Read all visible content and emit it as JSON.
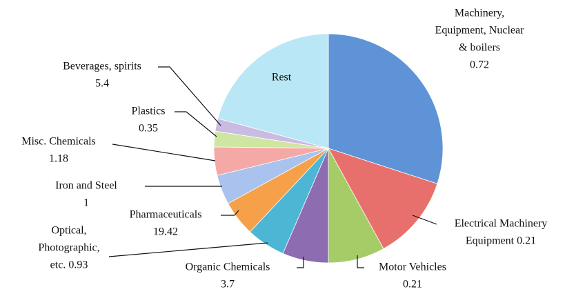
{
  "chart_data": {
    "type": "pie",
    "categories": [
      [
        "Machinery,",
        "Equipment, Nuclear",
        "& boilers",
        "0.72"
      ],
      [
        "Electrical Machinery",
        "Equipment 0.21"
      ],
      [
        "Motor Vehicles",
        "0.21"
      ],
      [
        "Organic Chemicals",
        "3.7"
      ],
      [
        "Optical,",
        "Photographic,",
        "etc. 0.93"
      ],
      [
        "Pharmaceuticals",
        "19.42"
      ],
      [
        "Iron and Steel",
        "1"
      ],
      [
        "Misc. Chemicals",
        "1.18"
      ],
      [
        "Plastics",
        "0.35"
      ],
      [
        "Beverages, spirits",
        "5.4"
      ],
      [
        "Rest"
      ]
    ],
    "values": [
      30,
      12,
      8,
      6.5,
      5.5,
      5,
      4.2,
      4,
      2.2,
      1.8,
      20.8
    ],
    "colors": [
      "#5f93d8",
      "#e8706c",
      "#a6cc67",
      "#8d6cb2",
      "#4cb6d4",
      "#f7a04a",
      "#a9c3ee",
      "#f5a9a7",
      "#cfe6a2",
      "#cabbe2",
      "#b9e7f6"
    ]
  }
}
